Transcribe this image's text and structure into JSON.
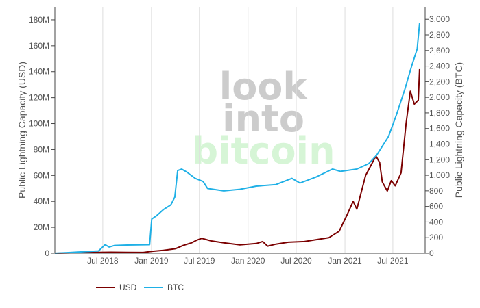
{
  "chart_data": {
    "type": "line",
    "y_left_label": "Public Lightning Capacity (USD)",
    "y_right_label": "Public Lightning Capacity (BTC)",
    "x_ticks": [
      "Jul 2018",
      "Jan 2019",
      "Jul 2019",
      "Jan 2020",
      "Jul 2020",
      "Jan 2021",
      "Jul 2021"
    ],
    "x_range": [
      "2018-01-01",
      "2021-10-31"
    ],
    "grid": "vertical",
    "y_left_ticks": [
      "0",
      "20M",
      "40M",
      "60M",
      "80M",
      "100M",
      "120M",
      "140M",
      "160M",
      "180M"
    ],
    "y_left_range": [
      0,
      190000000
    ],
    "y_right_ticks": [
      "0",
      "200",
      "400",
      "600",
      "800",
      "1,000",
      "1,200",
      "1,400",
      "1,600",
      "1,800",
      "2,000",
      "2,200",
      "2,400",
      "2,600",
      "2,800",
      "3,000"
    ],
    "y_right_range": [
      0,
      3160
    ],
    "legend_position": "bottom-left",
    "series": [
      {
        "name": "USD",
        "axis": "left",
        "color": "#7b0000",
        "points": [
          [
            "2018-01-01",
            0
          ],
          [
            "2018-02-15",
            200000
          ],
          [
            "2018-04-15",
            500000
          ],
          [
            "2018-06-15",
            700000
          ],
          [
            "2018-08-01",
            800000
          ],
          [
            "2018-10-01",
            700000
          ],
          [
            "2018-12-01",
            600000
          ],
          [
            "2019-01-01",
            1500000
          ],
          [
            "2019-02-15",
            2200000
          ],
          [
            "2019-04-01",
            3500000
          ],
          [
            "2019-05-01",
            6000000
          ],
          [
            "2019-06-01",
            8000000
          ],
          [
            "2019-06-20",
            10000000
          ],
          [
            "2019-07-10",
            11500000
          ],
          [
            "2019-08-15",
            9500000
          ],
          [
            "2019-10-01",
            8000000
          ],
          [
            "2019-12-01",
            6500000
          ],
          [
            "2020-02-01",
            7500000
          ],
          [
            "2020-02-25",
            9000000
          ],
          [
            "2020-03-15",
            5500000
          ],
          [
            "2020-04-15",
            7000000
          ],
          [
            "2020-06-01",
            8500000
          ],
          [
            "2020-08-01",
            9000000
          ],
          [
            "2020-09-15",
            10500000
          ],
          [
            "2020-11-01",
            12000000
          ],
          [
            "2020-12-10",
            17000000
          ],
          [
            "2021-01-10",
            30000000
          ],
          [
            "2021-02-01",
            40000000
          ],
          [
            "2021-02-15",
            34000000
          ],
          [
            "2021-03-01",
            45000000
          ],
          [
            "2021-03-20",
            60000000
          ],
          [
            "2021-04-15",
            70000000
          ],
          [
            "2021-04-28",
            75000000
          ],
          [
            "2021-05-12",
            70000000
          ],
          [
            "2021-05-22",
            55000000
          ],
          [
            "2021-06-10",
            48000000
          ],
          [
            "2021-06-25",
            56000000
          ],
          [
            "2021-07-10",
            52000000
          ],
          [
            "2021-08-01",
            62000000
          ],
          [
            "2021-08-20",
            100000000
          ],
          [
            "2021-09-05",
            125000000
          ],
          [
            "2021-09-20",
            115000000
          ],
          [
            "2021-10-05",
            118000000
          ],
          [
            "2021-10-10",
            142000000
          ]
        ]
      },
      {
        "name": "BTC",
        "axis": "right",
        "color": "#1fb0e6",
        "points": [
          [
            "2018-01-01",
            0
          ],
          [
            "2018-03-01",
            10
          ],
          [
            "2018-05-15",
            25
          ],
          [
            "2018-06-15",
            30
          ],
          [
            "2018-07-10",
            110
          ],
          [
            "2018-07-25",
            80
          ],
          [
            "2018-08-15",
            100
          ],
          [
            "2018-10-01",
            105
          ],
          [
            "2018-12-25",
            110
          ],
          [
            "2019-01-02",
            440
          ],
          [
            "2019-01-20",
            480
          ],
          [
            "2019-02-15",
            560
          ],
          [
            "2019-03-15",
            620
          ],
          [
            "2019-03-30",
            720
          ],
          [
            "2019-04-10",
            1060
          ],
          [
            "2019-04-25",
            1080
          ],
          [
            "2019-05-15",
            1040
          ],
          [
            "2019-06-15",
            960
          ],
          [
            "2019-07-15",
            920
          ],
          [
            "2019-08-01",
            830
          ],
          [
            "2019-10-01",
            800
          ],
          [
            "2019-12-01",
            820
          ],
          [
            "2020-02-01",
            860
          ],
          [
            "2020-04-15",
            880
          ],
          [
            "2020-06-15",
            960
          ],
          [
            "2020-07-15",
            900
          ],
          [
            "2020-09-15",
            980
          ],
          [
            "2020-11-15",
            1080
          ],
          [
            "2020-12-15",
            1050
          ],
          [
            "2021-02-15",
            1080
          ],
          [
            "2021-04-01",
            1150
          ],
          [
            "2021-05-01",
            1260
          ],
          [
            "2021-06-15",
            1500
          ],
          [
            "2021-07-15",
            1780
          ],
          [
            "2021-08-15",
            2100
          ],
          [
            "2021-09-10",
            2400
          ],
          [
            "2021-10-01",
            2620
          ],
          [
            "2021-10-10",
            2950
          ]
        ]
      }
    ],
    "watermark": {
      "lines": [
        "look",
        "into",
        "bitcoin"
      ],
      "colors": [
        "#cccccc",
        "#cccccc",
        "#d6f5d6"
      ]
    }
  }
}
